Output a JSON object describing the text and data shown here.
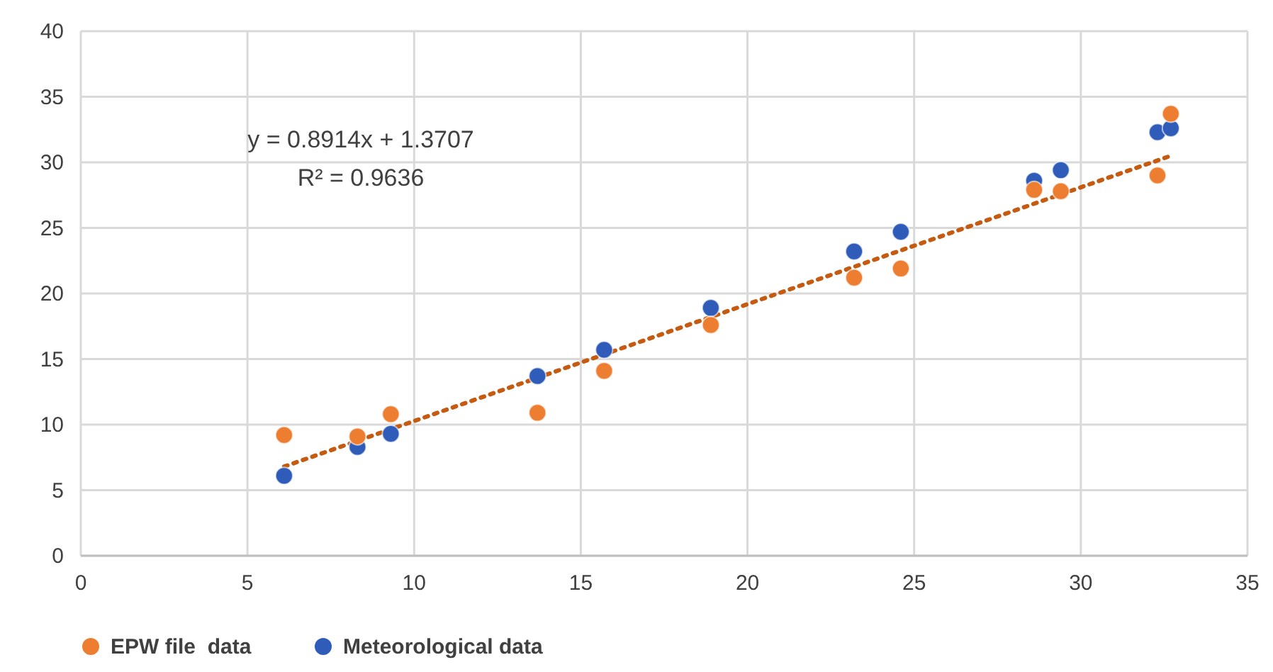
{
  "chart_data": {
    "type": "scatter",
    "xlim": [
      0,
      35
    ],
    "xticks": [
      0,
      5,
      10,
      15,
      20,
      25,
      30,
      35
    ],
    "ylim": [
      0,
      40
    ],
    "yticks": [
      0,
      5,
      10,
      15,
      20,
      25,
      30,
      35,
      40
    ],
    "grid": true,
    "legend": "bottom",
    "marker": "circle",
    "series": [
      {
        "name": "EPW file  data",
        "color": "#ed7d31",
        "x": [
          6.1,
          8.3,
          9.3,
          13.7,
          15.7,
          18.9,
          23.2,
          24.6,
          28.6,
          29.4,
          32.3,
          32.7
        ],
        "values": [
          9.2,
          9.1,
          10.8,
          10.9,
          14.1,
          17.6,
          21.2,
          21.9,
          27.9,
          27.8,
          29.0,
          33.7
        ]
      },
      {
        "name": "Meteorological data",
        "color": "#2e5cb8",
        "x": [
          6.1,
          8.3,
          9.3,
          13.7,
          15.7,
          18.9,
          23.2,
          24.6,
          28.6,
          29.4,
          32.3,
          32.7
        ],
        "values": [
          6.1,
          8.3,
          9.3,
          13.7,
          15.7,
          18.9,
          23.2,
          24.7,
          28.6,
          29.4,
          32.3,
          32.6
        ]
      },
      {
        "type": "line",
        "color": "#c55a11",
        "line_style": "dotted",
        "marker": "none",
        "x": [
          6.1,
          32.7
        ],
        "values": [
          6.8,
          30.5
        ]
      }
    ],
    "annotations": [
      "y = 0.8914x + 1.3707",
      "R² = 0.9636"
    ]
  }
}
